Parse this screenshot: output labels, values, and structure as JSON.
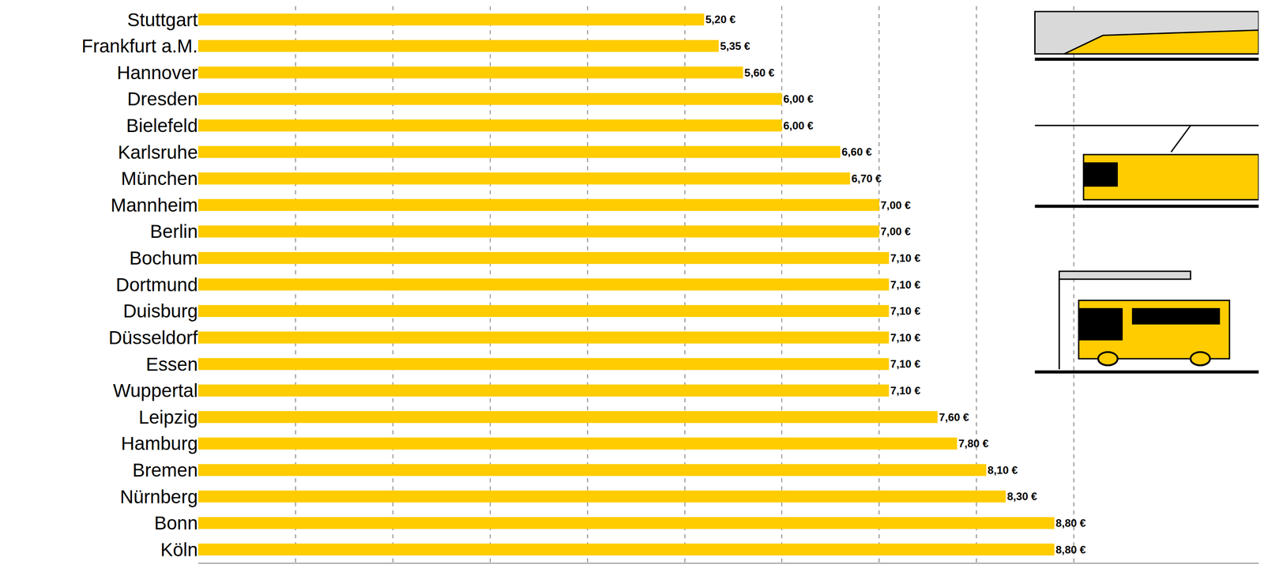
{
  "chart_data": {
    "type": "bar",
    "orientation": "horizontal",
    "categories": [
      "Stuttgart",
      "Frankfurt a.M.",
      "Hannover",
      "Dresden",
      "Bielefeld",
      "Karlsruhe",
      "München",
      "Mannheim",
      "Berlin",
      "Bochum",
      "Dortmund",
      "Duisburg",
      "Düsseldorf",
      "Essen",
      "Wuppertal",
      "Leipzig",
      "Hamburg",
      "Bremen",
      "Nürnberg",
      "Bonn",
      "Köln"
    ],
    "values": [
      5.2,
      5.35,
      5.6,
      6.0,
      6.0,
      6.6,
      6.7,
      7.0,
      7.0,
      7.1,
      7.1,
      7.1,
      7.1,
      7.1,
      7.1,
      7.6,
      7.8,
      8.1,
      8.3,
      8.8,
      8.8
    ],
    "value_labels": [
      "5,20 €",
      "5,35 €",
      "5,60 €",
      "6,00 €",
      "6,00 €",
      "6,60 €",
      "6,70 €",
      "7,00 €",
      "7,00 €",
      "7,10 €",
      "7,10 €",
      "7,10 €",
      "7,10 €",
      "7,10 €",
      "7,10 €",
      "7,60 €",
      "7,80 €",
      "8,10 €",
      "8,30 €",
      "8,80 €",
      "8,80 €"
    ],
    "color": "#ffcc00",
    "data_labels": true,
    "xlim": [
      0,
      10.9
    ],
    "xticks": [
      0,
      1,
      2,
      3,
      4,
      5,
      6,
      7,
      8,
      9
    ],
    "grid": true,
    "tick_labels": "y"
  }
}
